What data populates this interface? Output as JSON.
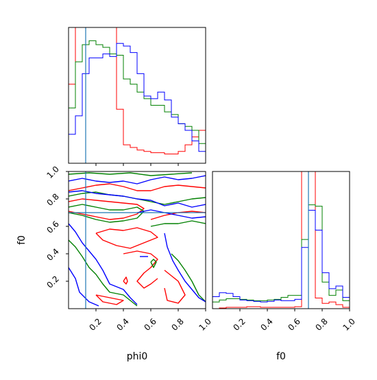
{
  "colors": {
    "red": "#ff0000",
    "green": "#008000",
    "blue": "#0000ff",
    "truth": "#1f77b4",
    "frame": "#000000"
  },
  "chart_data": [
    {
      "type": "histogram-step",
      "panel": "phi0-marginal",
      "xlim": [
        0,
        1
      ],
      "truth": 0.125,
      "ticks_x": [
        0.2,
        0.4,
        0.6,
        0.8
      ],
      "bins": [
        0,
        0.05,
        0.1,
        0.15,
        0.2,
        0.25,
        0.3,
        0.35,
        0.4,
        0.45,
        0.5,
        0.55,
        0.6,
        0.65,
        0.7,
        0.75,
        0.8,
        0.85,
        0.9,
        0.95,
        1.0
      ],
      "series": [
        {
          "color": "red",
          "values": [
            0.6,
            2.0,
            2.0,
            2.0,
            2.0,
            2.0,
            2.0,
            0.41,
            0.14,
            0.12,
            0.1,
            0.09,
            0.08,
            0.08,
            0.07,
            0.07,
            0.09,
            0.14,
            0.2,
            0.25
          ]
        },
        {
          "color": "green",
          "values": [
            0.42,
            0.77,
            0.9,
            0.93,
            0.9,
            0.88,
            0.83,
            0.82,
            0.64,
            0.6,
            0.54,
            0.49,
            0.44,
            0.44,
            0.39,
            0.37,
            0.3,
            0.28,
            0.25,
            0.15
          ]
        },
        {
          "color": "blue",
          "values": [
            0.22,
            0.36,
            0.68,
            0.8,
            0.8,
            0.83,
            0.81,
            0.91,
            0.89,
            0.84,
            0.68,
            0.51,
            0.49,
            0.54,
            0.48,
            0.35,
            0.3,
            0.25,
            0.17,
            0.09
          ]
        }
      ]
    },
    {
      "type": "contour",
      "panel": "phi0-f0-joint",
      "xlabel": "phi0",
      "ylabel": "f0",
      "xlim": [
        0,
        1
      ],
      "ylim": [
        0,
        1
      ],
      "ticks_x": [
        "0.2",
        "0.4",
        "0.6",
        "0.8",
        "1.0"
      ],
      "ticks_y": [
        "0.2",
        "0.4",
        "0.6",
        "0.8",
        "1.0"
      ],
      "truth": [
        0.125,
        0.7
      ],
      "contours": [
        {
          "color": "red",
          "paths": [
            [
              [
                0.0,
                0.86
              ],
              [
                0.1,
                0.88
              ],
              [
                0.2,
                0.9
              ],
              [
                0.3,
                0.91
              ],
              [
                0.4,
                0.89
              ],
              [
                0.5,
                0.86
              ],
              [
                0.6,
                0.86
              ],
              [
                0.7,
                0.89
              ],
              [
                0.8,
                0.9
              ],
              [
                0.9,
                0.89
              ],
              [
                1.0,
                0.88
              ]
            ],
            [
              [
                0.0,
                0.78
              ],
              [
                0.1,
                0.8
              ],
              [
                0.2,
                0.79
              ],
              [
                0.3,
                0.78
              ],
              [
                0.4,
                0.77
              ],
              [
                0.5,
                0.76
              ],
              [
                0.55,
                0.73
              ],
              [
                0.5,
                0.69
              ],
              [
                0.4,
                0.66
              ],
              [
                0.3,
                0.65
              ],
              [
                0.2,
                0.67
              ],
              [
                0.1,
                0.69
              ],
              [
                0.0,
                0.71
              ]
            ],
            [
              [
                0.2,
                0.55
              ],
              [
                0.3,
                0.58
              ],
              [
                0.4,
                0.57
              ],
              [
                0.5,
                0.59
              ],
              [
                0.6,
                0.56
              ],
              [
                0.65,
                0.52
              ],
              [
                0.55,
                0.48
              ],
              [
                0.45,
                0.44
              ],
              [
                0.35,
                0.46
              ],
              [
                0.25,
                0.5
              ],
              [
                0.2,
                0.55
              ]
            ],
            [
              [
                0.4,
                0.4
              ],
              [
                0.5,
                0.42
              ],
              [
                0.6,
                0.4
              ],
              [
                0.65,
                0.36
              ],
              [
                0.6,
                0.3
              ],
              [
                0.55,
                0.26
              ],
              [
                0.5,
                0.2
              ],
              [
                0.55,
                0.15
              ],
              [
                0.6,
                0.18
              ],
              [
                0.65,
                0.22
              ]
            ],
            [
              [
                0.2,
                0.1
              ],
              [
                0.25,
                0.05
              ],
              [
                0.35,
                0.03
              ],
              [
                0.4,
                0.06
              ],
              [
                0.3,
                0.08
              ],
              [
                0.2,
                0.1
              ]
            ],
            [
              [
                0.4,
                0.2
              ],
              [
                0.42,
                0.23
              ],
              [
                0.43,
                0.2
              ],
              [
                0.42,
                0.18
              ],
              [
                0.4,
                0.2
              ]
            ],
            [
              [
                0.7,
                0.28
              ],
              [
                0.75,
                0.24
              ],
              [
                0.8,
                0.2
              ],
              [
                0.85,
                0.1
              ],
              [
                0.8,
                0.04
              ],
              [
                0.72,
                0.06
              ],
              [
                0.7,
                0.15
              ]
            ],
            [
              [
                0.6,
                0.65
              ],
              [
                0.7,
                0.68
              ],
              [
                0.8,
                0.7
              ],
              [
                0.9,
                0.71
              ],
              [
                1.0,
                0.7
              ]
            ]
          ]
        },
        {
          "color": "green",
          "paths": [
            [
              [
                0.0,
                0.82
              ],
              [
                0.1,
                0.84
              ],
              [
                0.2,
                0.85
              ],
              [
                0.3,
                0.83
              ],
              [
                0.4,
                0.82
              ],
              [
                0.5,
                0.8
              ],
              [
                0.6,
                0.78
              ],
              [
                0.7,
                0.76
              ],
              [
                0.8,
                0.78
              ],
              [
                0.9,
                0.8
              ],
              [
                1.0,
                0.81
              ]
            ],
            [
              [
                0.0,
                0.74
              ],
              [
                0.1,
                0.76
              ],
              [
                0.2,
                0.74
              ],
              [
                0.3,
                0.72
              ],
              [
                0.4,
                0.72
              ],
              [
                0.5,
                0.74
              ],
              [
                0.55,
                0.71
              ],
              [
                0.5,
                0.66
              ],
              [
                0.4,
                0.64
              ],
              [
                0.3,
                0.63
              ],
              [
                0.2,
                0.65
              ],
              [
                0.1,
                0.68
              ],
              [
                0.0,
                0.7
              ]
            ],
            [
              [
                0.0,
                0.5
              ],
              [
                0.05,
                0.45
              ],
              [
                0.1,
                0.38
              ],
              [
                0.15,
                0.3
              ],
              [
                0.2,
                0.25
              ],
              [
                0.25,
                0.18
              ],
              [
                0.3,
                0.12
              ],
              [
                0.4,
                0.1
              ],
              [
                0.45,
                0.06
              ],
              [
                0.5,
                0.02
              ]
            ],
            [
              [
                0.6,
                0.6
              ],
              [
                0.7,
                0.62
              ],
              [
                0.8,
                0.62
              ],
              [
                0.9,
                0.64
              ],
              [
                1.0,
                0.62
              ]
            ],
            [
              [
                0.75,
                0.4
              ],
              [
                0.8,
                0.35
              ],
              [
                0.85,
                0.28
              ],
              [
                0.9,
                0.2
              ],
              [
                0.95,
                0.1
              ],
              [
                1.0,
                0.05
              ]
            ],
            [
              [
                0.6,
                0.34
              ],
              [
                0.62,
                0.3
              ],
              [
                0.64,
                0.34
              ],
              [
                0.62,
                0.36
              ],
              [
                0.6,
                0.34
              ]
            ],
            [
              [
                0.0,
                0.98
              ],
              [
                0.15,
                0.99
              ],
              [
                0.3,
                0.98
              ],
              [
                0.45,
                0.99
              ],
              [
                0.6,
                0.97
              ],
              [
                0.75,
                0.98
              ],
              [
                0.9,
                0.99
              ]
            ]
          ]
        },
        {
          "color": "blue",
          "paths": [
            [
              [
                0.0,
                0.85
              ],
              [
                0.1,
                0.86
              ],
              [
                0.2,
                0.84
              ],
              [
                0.3,
                0.83
              ],
              [
                0.4,
                0.82
              ],
              [
                0.5,
                0.8
              ],
              [
                0.6,
                0.79
              ],
              [
                0.7,
                0.75
              ],
              [
                0.8,
                0.77
              ],
              [
                0.9,
                0.74
              ],
              [
                1.0,
                0.76
              ]
            ],
            [
              [
                0.0,
                0.93
              ],
              [
                0.1,
                0.95
              ],
              [
                0.2,
                0.93
              ],
              [
                0.3,
                0.92
              ],
              [
                0.4,
                0.93
              ],
              [
                0.5,
                0.91
              ],
              [
                0.6,
                0.94
              ],
              [
                0.7,
                0.96
              ],
              [
                0.8,
                0.94
              ],
              [
                0.9,
                0.95
              ],
              [
                1.0,
                0.97
              ]
            ],
            [
              [
                0.0,
                0.62
              ],
              [
                0.05,
                0.56
              ],
              [
                0.1,
                0.48
              ],
              [
                0.15,
                0.42
              ],
              [
                0.2,
                0.36
              ],
              [
                0.25,
                0.28
              ],
              [
                0.3,
                0.18
              ],
              [
                0.4,
                0.14
              ],
              [
                0.45,
                0.08
              ],
              [
                0.5,
                0.03
              ]
            ],
            [
              [
                0.0,
                0.3
              ],
              [
                0.05,
                0.22
              ],
              [
                0.08,
                0.12
              ],
              [
                0.15,
                0.05
              ],
              [
                0.22,
                0.02
              ]
            ],
            [
              [
                0.5,
                0.7
              ],
              [
                0.6,
                0.72
              ],
              [
                0.7,
                0.7
              ],
              [
                0.8,
                0.68
              ],
              [
                0.9,
                0.66
              ],
              [
                1.0,
                0.67
              ]
            ],
            [
              [
                0.7,
                0.55
              ],
              [
                0.72,
                0.45
              ],
              [
                0.76,
                0.35
              ],
              [
                0.8,
                0.28
              ],
              [
                0.85,
                0.2
              ],
              [
                0.9,
                0.14
              ],
              [
                0.95,
                0.08
              ],
              [
                1.0,
                0.05
              ]
            ],
            [
              [
                0.52,
                0.38
              ],
              [
                0.58,
                0.38
              ]
            ]
          ]
        }
      ]
    },
    {
      "type": "histogram-step",
      "panel": "f0-marginal",
      "xlabel": "f0",
      "xlim": [
        0,
        1
      ],
      "truth": 0.7,
      "ticks_x": [
        "0.2",
        "0.4",
        "0.6",
        "0.8",
        "1.0"
      ],
      "bins": [
        0,
        0.05,
        0.1,
        0.15,
        0.2,
        0.25,
        0.3,
        0.35,
        0.4,
        0.45,
        0.5,
        0.55,
        0.6,
        0.65,
        0.7,
        0.75,
        0.8,
        0.85,
        0.9,
        0.95,
        1.0
      ],
      "series": [
        {
          "color": "red",
          "values": [
            0.0,
            0.005,
            0.01,
            0.01,
            0.01,
            0.015,
            0.015,
            0.01,
            0.01,
            0.01,
            0.01,
            0.01,
            0.015,
            2.0,
            2.0,
            0.08,
            0.04,
            0.05,
            0.03,
            0.01
          ]
        },
        {
          "color": "green",
          "values": [
            0.05,
            0.065,
            0.075,
            0.075,
            0.07,
            0.065,
            0.06,
            0.06,
            0.065,
            0.07,
            0.085,
            0.1,
            0.1,
            0.52,
            0.78,
            0.77,
            0.2,
            0.1,
            0.14,
            0.06
          ]
        },
        {
          "color": "blue",
          "values": [
            0.09,
            0.12,
            0.115,
            0.09,
            0.065,
            0.06,
            0.055,
            0.05,
            0.055,
            0.065,
            0.06,
            0.06,
            0.07,
            0.46,
            0.74,
            0.59,
            0.27,
            0.15,
            0.17,
            0.085
          ]
        }
      ]
    }
  ]
}
